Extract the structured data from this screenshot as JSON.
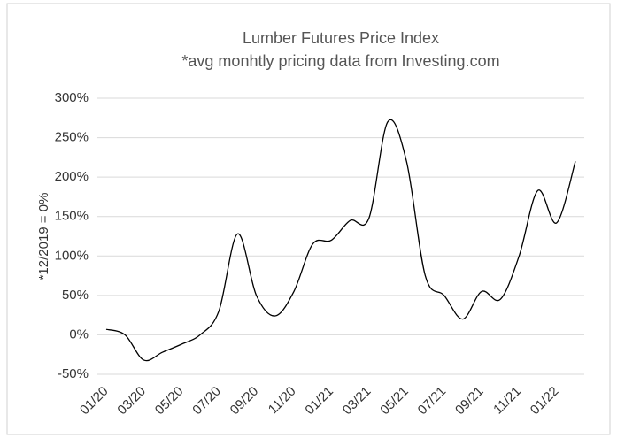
{
  "chart_data": {
    "type": "line",
    "title": "Lumber Futures Price Index",
    "subtitle": "*avg monhtly pricing data from Investing.com",
    "y_label": "*12/2019 = 0%",
    "categories": [
      "01/20",
      null,
      "03/20",
      null,
      "05/20",
      null,
      "07/20",
      null,
      "09/20",
      null,
      "11/20",
      null,
      "01/21",
      null,
      "03/21",
      null,
      "05/21",
      null,
      "07/21",
      null,
      "09/21",
      null,
      "11/21",
      null,
      "01/22",
      null
    ],
    "series": [
      {
        "name": "Lumber Futures",
        "color": "#000000",
        "values": [
          7,
          0,
          -32,
          -22,
          -12,
          0,
          30,
          128,
          50,
          24,
          55,
          115,
          120,
          145,
          148,
          270,
          220,
          75,
          50,
          20,
          55,
          45,
          100,
          183,
          142,
          220
        ]
      }
    ],
    "ylim": [
      -50,
      300
    ],
    "yticks": [
      {
        "value": -50,
        "label": "-50%"
      },
      {
        "value": 0,
        "label": "0%"
      },
      {
        "value": 50,
        "label": "50%"
      },
      {
        "value": 100,
        "label": "100%"
      },
      {
        "value": 150,
        "label": "150%"
      },
      {
        "value": 200,
        "label": "200%"
      },
      {
        "value": 250,
        "label": "250%"
      },
      {
        "value": 300,
        "label": "300%"
      }
    ],
    "grid": true
  }
}
